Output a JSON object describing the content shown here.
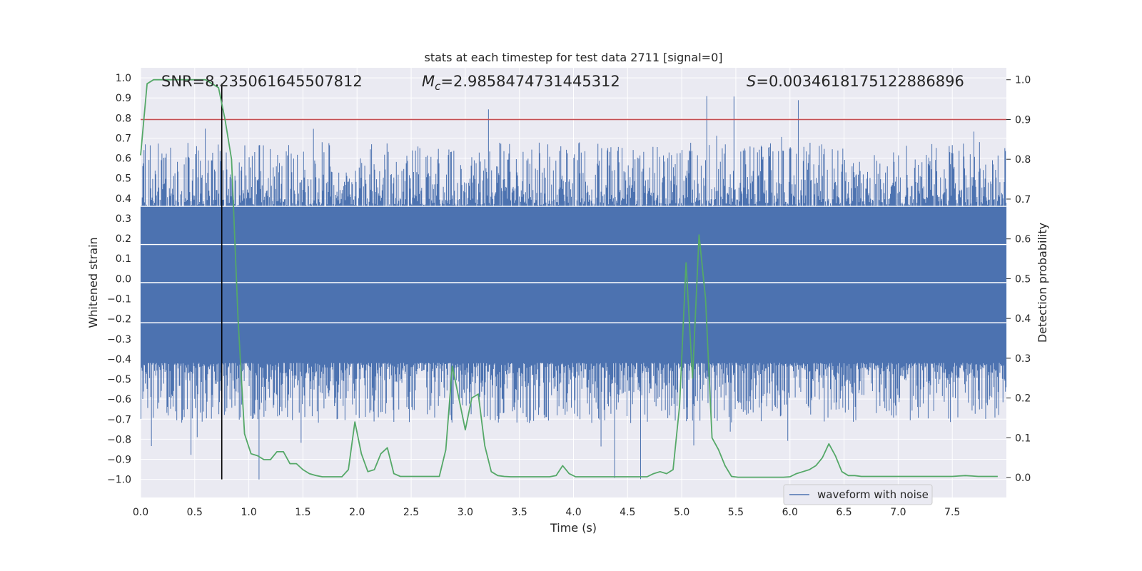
{
  "chart_data": {
    "type": "line",
    "title": "stats at each timestep for test data 2711 [signal=0]",
    "xlabel": "Time (s)",
    "ylabel_left": "Whitened strain",
    "ylabel_right": "Detection probability",
    "xlim": [
      0.0,
      8.0
    ],
    "ylim_left": [
      -1.09,
      1.05
    ],
    "ylim_right": [
      -0.05,
      1.03
    ],
    "x_ticks": [
      "0.0",
      "0.5",
      "1.0",
      "1.5",
      "2.0",
      "2.5",
      "3.0",
      "3.5",
      "4.0",
      "4.5",
      "5.0",
      "5.5",
      "6.0",
      "6.5",
      "7.0",
      "7.5"
    ],
    "left_ticks": [
      "1.0",
      "0.9",
      "0.8",
      "0.7",
      "0.6",
      "0.5",
      "0.4",
      "0.3",
      "0.2",
      "0.1",
      "0.0",
      "-0.1",
      "-0.2",
      "-0.3",
      "-0.4",
      "-0.5",
      "-0.6",
      "-0.7",
      "-0.8",
      "-0.9",
      "-1.0"
    ],
    "right_ticks": [
      "1.0",
      "0.9",
      "0.8",
      "0.7",
      "0.6",
      "0.5",
      "0.4",
      "0.3",
      "0.2",
      "0.1",
      "0.0"
    ],
    "annotations": {
      "snr": "SNR=8.235061645507812",
      "mc_symbol": "M",
      "mc_sub": "c",
      "mc_value": "=2.9858474731445312",
      "s_symbol": "S",
      "s_value": "=0.0034618175122886896"
    },
    "legend": {
      "label": "waveform with noise",
      "position": "lower-right"
    },
    "threshold": {
      "value": 0.9,
      "axis": "right",
      "color": "#c44e52"
    },
    "marker_line": {
      "x": 0.75,
      "color": "#000000"
    },
    "strain_series": {
      "name": "waveform with noise",
      "color": "#4c72b0",
      "band_low": -0.42,
      "band_high": 0.36,
      "peak_max": 0.98,
      "peak_min": -1.0,
      "seed": 2711
    },
    "probability_series": {
      "name": "detection probability",
      "color": "#55a868",
      "x": [
        0.0,
        0.06,
        0.12,
        0.18,
        0.24,
        0.3,
        0.36,
        0.42,
        0.48,
        0.54,
        0.6,
        0.66,
        0.72,
        0.78,
        0.84,
        0.9,
        0.96,
        1.02,
        1.08,
        1.14,
        1.2,
        1.26,
        1.32,
        1.38,
        1.44,
        1.5,
        1.56,
        1.62,
        1.68,
        1.74,
        1.8,
        1.86,
        1.92,
        1.98,
        2.04,
        2.1,
        2.16,
        2.22,
        2.28,
        2.34,
        2.4,
        2.46,
        2.52,
        2.58,
        2.64,
        2.7,
        2.76,
        2.82,
        2.88,
        2.94,
        3.0,
        3.06,
        3.12,
        3.18,
        3.24,
        3.3,
        3.36,
        3.42,
        3.48,
        3.54,
        3.6,
        3.66,
        3.72,
        3.78,
        3.84,
        3.9,
        3.96,
        4.02,
        4.08,
        4.14,
        4.2,
        4.26,
        4.32,
        4.38,
        4.44,
        4.5,
        4.56,
        4.62,
        4.68,
        4.74,
        4.8,
        4.86,
        4.92,
        4.98,
        5.04,
        5.1,
        5.16,
        5.22,
        5.28,
        5.34,
        5.4,
        5.46,
        5.52,
        5.58,
        5.64,
        5.7,
        5.76,
        5.82,
        5.88,
        5.94,
        6.0,
        6.06,
        6.12,
        6.18,
        6.24,
        6.3,
        6.36,
        6.42,
        6.48,
        6.54,
        6.6,
        6.66,
        6.72,
        6.78,
        6.84,
        6.9,
        6.96,
        7.02,
        7.08,
        7.14,
        7.2,
        7.26,
        7.32,
        7.38,
        7.44,
        7.5,
        7.56,
        7.62,
        7.68,
        7.74,
        7.8,
        7.86,
        7.92
      ],
      "y": [
        0.81,
        0.99,
        1.0,
        1.0,
        1.0,
        1.0,
        1.0,
        1.0,
        1.0,
        1.0,
        1.0,
        0.99,
        0.98,
        0.9,
        0.8,
        0.4,
        0.11,
        0.06,
        0.055,
        0.045,
        0.045,
        0.065,
        0.065,
        0.035,
        0.035,
        0.02,
        0.01,
        0.005,
        0.002,
        0.002,
        0.002,
        0.002,
        0.02,
        0.14,
        0.06,
        0.015,
        0.02,
        0.06,
        0.075,
        0.01,
        0.003,
        0.003,
        0.003,
        0.003,
        0.003,
        0.003,
        0.003,
        0.07,
        0.28,
        0.2,
        0.12,
        0.2,
        0.21,
        0.08,
        0.015,
        0.005,
        0.003,
        0.002,
        0.002,
        0.002,
        0.002,
        0.002,
        0.002,
        0.002,
        0.005,
        0.03,
        0.01,
        0.002,
        0.002,
        0.002,
        0.002,
        0.002,
        0.002,
        0.002,
        0.002,
        0.002,
        0.002,
        0.002,
        0.002,
        0.01,
        0.015,
        0.01,
        0.02,
        0.18,
        0.54,
        0.25,
        0.61,
        0.45,
        0.1,
        0.07,
        0.03,
        0.003,
        0.001,
        0.001,
        0.001,
        0.001,
        0.001,
        0.001,
        0.001,
        0.001,
        0.002,
        0.01,
        0.015,
        0.02,
        0.03,
        0.05,
        0.085,
        0.055,
        0.015,
        0.005,
        0.005,
        0.003,
        0.003,
        0.003,
        0.003,
        0.003,
        0.003,
        0.003,
        0.003,
        0.003,
        0.003,
        0.003,
        0.003,
        0.003,
        0.003,
        0.003,
        0.004,
        0.005,
        0.004,
        0.003,
        0.003,
        0.003,
        0.003
      ]
    }
  }
}
